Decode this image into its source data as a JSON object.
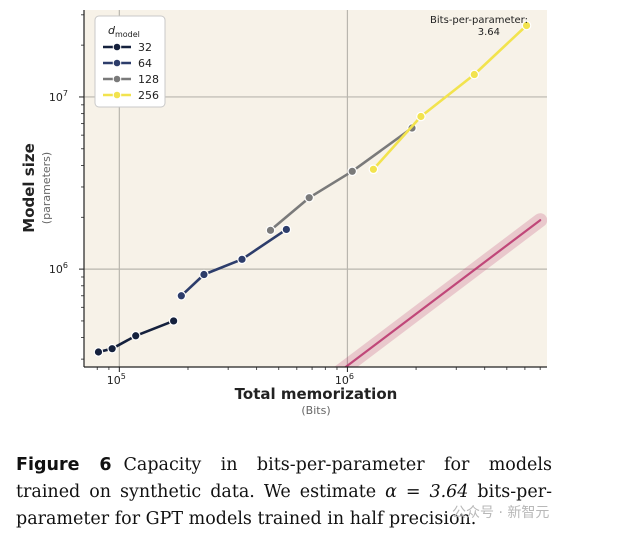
{
  "chart_data": {
    "type": "line",
    "title": "",
    "xlabel": "Total memorization",
    "xlabel_sub": "(Bits)",
    "ylabel": "Model size",
    "ylabel_sub": "(parameters)",
    "xscale": "log",
    "yscale": "log",
    "xlim": [
      70000,
      7500000
    ],
    "ylim": [
      270000,
      32000000
    ],
    "x_ticks": [
      {
        "value": 100000,
        "base": "10",
        "exp": "5"
      },
      {
        "value": 1000000,
        "base": "10",
        "exp": "6"
      }
    ],
    "y_ticks": [
      {
        "value": 1000000,
        "base": "10",
        "exp": "6"
      },
      {
        "value": 10000000,
        "base": "10",
        "exp": "7"
      }
    ],
    "grid": true,
    "legend": {
      "title": "d",
      "title_sub": "model",
      "placement": "top-left"
    },
    "annotation": {
      "line1": "Bits-per-parameter:",
      "line2": "3.64"
    },
    "fit": {
      "label": "Bits-per-parameter: 3.64",
      "bits_per_parameter": 3.64,
      "color": "#b9306a",
      "x": [
        185000,
        7000000
      ]
    },
    "series": [
      {
        "name": "32",
        "color": "#15213d",
        "x": [
          81000,
          93000,
          118000,
          173000
        ],
        "y": [
          330000,
          345000,
          410000,
          500000
        ]
      },
      {
        "name": "64",
        "color": "#2d3d6b",
        "x": [
          187000,
          235000,
          345000,
          540000
        ],
        "y": [
          700000,
          930000,
          1140000,
          1700000
        ]
      },
      {
        "name": "128",
        "color": "#7a7a7a",
        "x": [
          460000,
          680000,
          1050000,
          1920000
        ],
        "y": [
          1680000,
          2600000,
          3700000,
          6600000
        ]
      },
      {
        "name": "256",
        "color": "#f2e34e",
        "x": [
          1300000,
          2100000,
          3600000,
          6100000
        ],
        "y": [
          3800000,
          7700000,
          13500000,
          26000000
        ]
      }
    ]
  },
  "caption": {
    "label": "Figure 6",
    "text_before": "Capacity in bits-per-parameter for models trained on synthetic data. We estimate ",
    "math": "α = 3.64",
    "text_after": " bits-per-parameter for GPT models trained in half precision."
  },
  "watermark": "公众号 · 新智元"
}
